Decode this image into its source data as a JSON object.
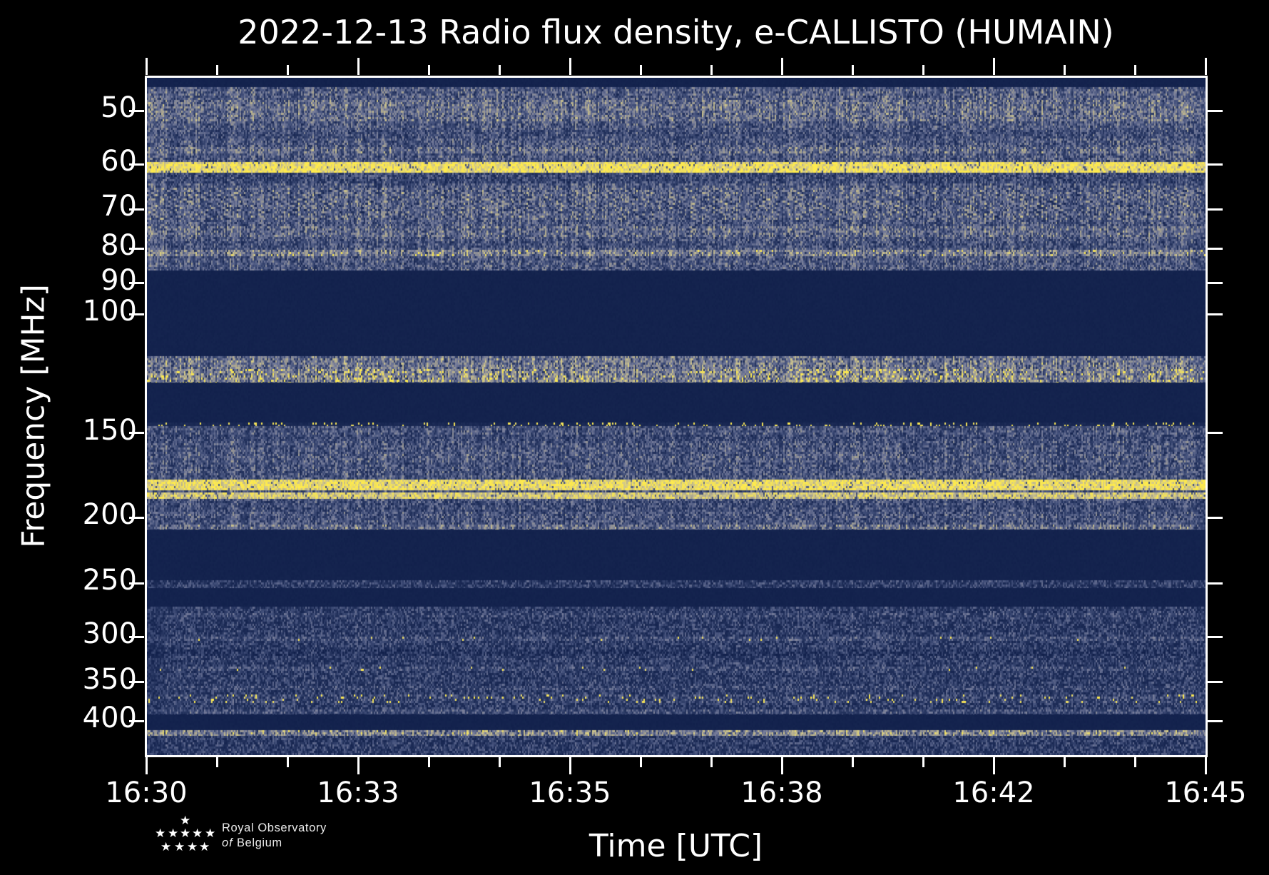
{
  "chart_data": {
    "type": "heatmap",
    "title": "2022-12-13 Radio flux density, e-CALLISTO (HUMAIN)",
    "date": "2022-12-13",
    "instrument": "e-CALLISTO",
    "station": "HUMAIN",
    "xlabel": "Time [UTC]",
    "ylabel": "Frequency [MHz]",
    "x_ticks": [
      "16:30",
      "16:33",
      "16:35",
      "16:38",
      "16:42",
      "16:45"
    ],
    "x_minor_ticks_between": 2,
    "x_range_utc": [
      "16:30",
      "16:45"
    ],
    "time_span_min": 15,
    "y_ticks": [
      50,
      60,
      70,
      80,
      90,
      100,
      150,
      200,
      250,
      300,
      350,
      400
    ],
    "y_scale": "log",
    "y_range_mhz": [
      44.6,
      449
    ],
    "legend": "none",
    "grid": false,
    "colormap": [
      "#11204b",
      "#25345f",
      "#47547e",
      "#787e9b",
      "#a7a391",
      "#d3c98b",
      "#f2e15c",
      "#ffeb4d"
    ],
    "colormap_stops": [
      0,
      0.18,
      0.38,
      0.55,
      0.7,
      0.82,
      0.91,
      1.0
    ],
    "bands": [
      {
        "f": [
          44.6,
          46.1
        ],
        "kind": "blank"
      },
      {
        "f": [
          46.1,
          86.0
        ],
        "kind": "striate",
        "base": 0.4,
        "rows": [
          {
            "f": [
              46.1,
              48.0
            ],
            "boost": 0.03
          },
          {
            "f": [
              48.0,
              51.5
            ],
            "boost": 0.1
          },
          {
            "f": [
              53.0,
              54.5
            ],
            "boost": -0.05
          },
          {
            "f": [
              56.3,
              57.6
            ],
            "boost": 0.09
          },
          {
            "f": [
              59.4,
              61.6
            ],
            "set": 0.96
          },
          {
            "f": [
              61.6,
              63.5
            ],
            "boost": -0.08
          },
          {
            "f": [
              64.5,
              72.0
            ],
            "boost": 0.05,
            "wave": 1
          },
          {
            "f": [
              73.5,
              76.5
            ],
            "boost": 0.08
          },
          {
            "f": [
              77.5,
              79.0
            ],
            "boost": -0.04
          },
          {
            "f": [
              79.8,
              81.8
            ],
            "boost": 0.16,
            "dot": 0.02
          }
        ]
      },
      {
        "f": [
          86.0,
          115.2
        ],
        "kind": "blank"
      },
      {
        "f": [
          115.2,
          126.0
        ],
        "kind": "striate",
        "base": 0.5,
        "rows": [
          {
            "f": [
              115.2,
              120.0
            ],
            "boost": 0.04
          },
          {
            "f": [
              120.0,
              126.0
            ],
            "boost": 0.08,
            "blobs": 0.06
          }
        ]
      },
      {
        "f": [
          126.0,
          144.3
        ],
        "kind": "blank"
      },
      {
        "f": [
          144.3,
          146.2
        ],
        "kind": "dots",
        "base": 0.08,
        "dot": 0.1
      },
      {
        "f": [
          146.2,
          208.0
        ],
        "kind": "striate",
        "base": 0.38,
        "rows": [
          {
            "f": [
              150.0,
              153.0
            ],
            "boost": -0.05
          },
          {
            "f": [
              160.0,
              165.0
            ],
            "boost": 0.03
          },
          {
            "f": [
              175.0,
              181.2
            ],
            "set": 0.95
          },
          {
            "f": [
              182.8,
              185.8
            ],
            "set": 0.86
          },
          {
            "f": [
              188.0,
              195.0
            ],
            "boost": -0.04
          },
          {
            "f": [
              203.0,
              208.0
            ],
            "boost": 0.12
          }
        ]
      },
      {
        "f": [
          208.0,
          247.0
        ],
        "kind": "blank"
      },
      {
        "f": [
          247.0,
          254.0
        ],
        "kind": "speckle",
        "base": 0.3
      },
      {
        "f": [
          254.0,
          270.5
        ],
        "kind": "blank"
      },
      {
        "f": [
          270.5,
          390.0
        ],
        "kind": "speckle",
        "base": 0.3,
        "rows": [
          {
            "f": [
              276.0,
              280.0
            ],
            "boost": 0.06
          },
          {
            "f": [
              298.0,
              303.0
            ],
            "boost": 0.09,
            "dot": 0.012
          },
          {
            "f": [
              312.0,
              318.0
            ],
            "boost": -0.05
          },
          {
            "f": [
              330.0,
              335.0
            ],
            "boost": 0.07,
            "dot": 0.01
          },
          {
            "f": [
              352.0,
              357.0
            ],
            "boost": 0.06
          },
          {
            "f": [
              363.0,
              373.0
            ],
            "boost": 0.05,
            "dot": 0.05
          },
          {
            "f": [
              381.0,
              388.0
            ],
            "boost": 0.1
          }
        ]
      },
      {
        "f": [
          390.0,
          411.5
        ],
        "kind": "blank"
      },
      {
        "f": [
          411.5,
          420.0
        ],
        "kind": "striate",
        "base": 0.6
      },
      {
        "f": [
          420.0,
          449.0
        ],
        "kind": "speckle",
        "base": 0.34
      }
    ],
    "features": [
      "continuous bright yellow emission line at ~60 MHz",
      "striated noisy band 46-86 MHz with wavy interference pattern 65-72 MHz",
      "blank (no-data) gap 86-115 MHz",
      "bright band 115-126 MHz with intermittent strong yellow blobs",
      "sparse bright dot line near 145 MHz",
      "noisy band 146-208 MHz with double bright yellow lines at ~178 and ~184 MHz",
      "thin weak band 247-254 MHz",
      "speckled band 270-390 MHz with yellow bursts near 300 and 363-373 MHz",
      "bright tan line ~412-420 MHz and speckle band to 449 MHz"
    ]
  },
  "palette": {
    "background": "#000000",
    "text": "#ffffff",
    "spine": "#ffffff",
    "blank_band": "#13224f",
    "bright_line": "#ffe94e"
  },
  "logo": {
    "star_icon": "★",
    "line1": "Royal Observatory",
    "line2_italic": "of",
    "line2_rest": " Belgium"
  }
}
